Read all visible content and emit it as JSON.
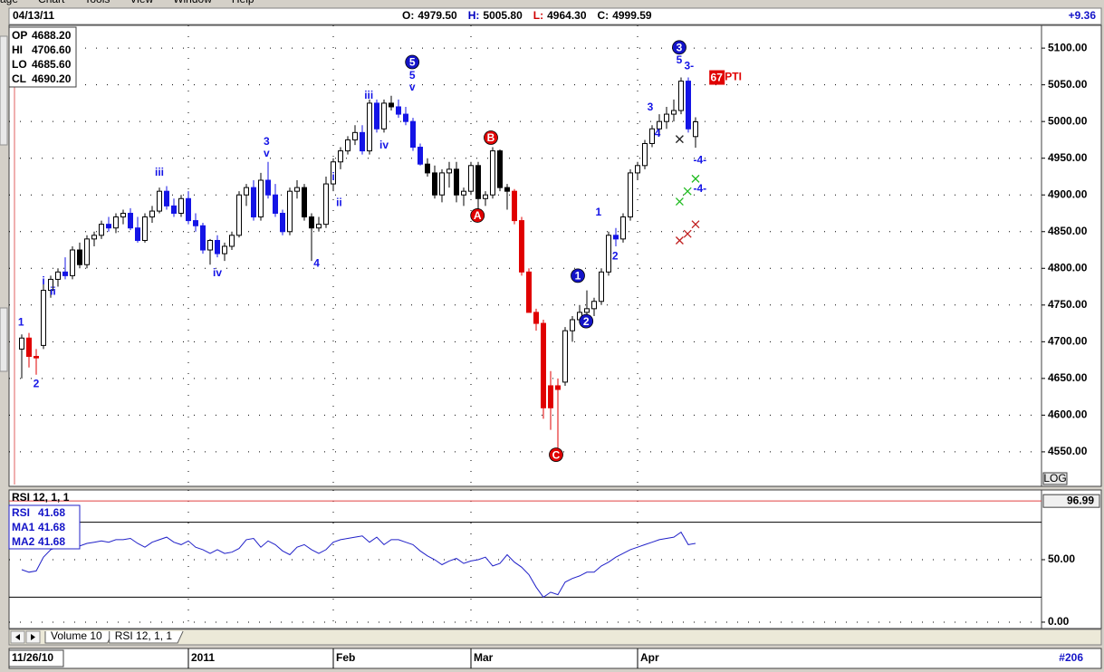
{
  "menu": [
    "age",
    "Chart",
    "Tools",
    "View",
    "Window",
    "Help"
  ],
  "header": {
    "date": "04/13/11",
    "quote": [
      {
        "label": "O:",
        "value": "4979.50",
        "color": "#000000"
      },
      {
        "label": "H:",
        "value": "5005.80",
        "color": "#0000c0"
      },
      {
        "label": "L:",
        "value": "4964.30",
        "color": "#d00000"
      },
      {
        "label": "C:",
        "value": "4999.59",
        "color": "#000000"
      }
    ],
    "change": "+9.36"
  },
  "tabs": [
    "Volume 10",
    "RSI 12, 1, 1"
  ],
  "footer": {
    "start": "11/26/10",
    "count": "#206"
  },
  "chart_data": [
    {
      "type": "candlestick",
      "x": [
        2,
        3,
        4,
        5,
        6,
        7,
        8,
        9,
        10,
        11,
        12,
        13,
        14,
        15,
        16,
        17,
        18,
        19,
        20,
        21,
        22,
        23,
        24,
        25,
        26,
        27,
        28,
        29,
        30,
        31,
        32,
        33,
        34,
        35,
        36,
        37,
        38,
        39,
        40,
        41,
        42,
        43,
        44,
        45,
        46,
        47,
        48,
        49,
        50,
        51,
        52,
        53,
        54,
        55,
        56,
        57,
        58,
        59,
        60,
        61,
        62,
        63,
        64,
        65,
        66,
        67,
        68,
        69,
        70,
        71,
        72,
        73,
        74,
        75,
        76,
        77,
        78,
        79,
        80,
        81,
        82,
        83,
        84,
        85,
        86,
        87,
        88,
        89,
        90,
        91,
        92,
        93,
        94,
        95
      ],
      "open": [
        4690,
        4705,
        4680,
        4695,
        4770,
        4785,
        4795,
        4790,
        4825,
        4805,
        4840,
        4845,
        4860,
        4855,
        4870,
        4875,
        4855,
        4838,
        4870,
        4878,
        4905,
        4885,
        4875,
        4895,
        4865,
        4858,
        4825,
        4838,
        4820,
        4830,
        4845,
        4900,
        4910,
        4870,
        4920,
        4900,
        4875,
        4850,
        4905,
        4910,
        4870,
        4855,
        4860,
        4915,
        4945,
        4960,
        4975,
        4985,
        4960,
        5025,
        4990,
        5025,
        5020,
        5010,
        5000,
        4965,
        4942,
        4930,
        4900,
        4930,
        4935,
        4900,
        4905,
        4940,
        4895,
        4900,
        4960,
        4910,
        4905,
        4865,
        4795,
        4740,
        4725,
        4610,
        4640,
        4645,
        4715,
        4730,
        4740,
        4745,
        4755,
        4795,
        4845,
        4840,
        4870,
        4930,
        4940,
        4970,
        4990,
        5000,
        5010,
        5015,
        5055,
        4979.5
      ],
      "high": [
        4710,
        4712,
        4690,
        4780,
        4790,
        4800,
        4815,
        4830,
        4835,
        4845,
        4850,
        4865,
        4870,
        4875,
        4880,
        4882,
        4870,
        4875,
        4885,
        4910,
        4912,
        4895,
        4900,
        4905,
        4875,
        4862,
        4840,
        4845,
        4835,
        4850,
        4905,
        4915,
        4920,
        4930,
        4945,
        4915,
        4880,
        4910,
        4920,
        4915,
        4875,
        4870,
        4925,
        4950,
        4965,
        4980,
        4995,
        4995,
        5030,
        5030,
        5030,
        5035,
        5030,
        5020,
        5005,
        4970,
        4950,
        4940,
        4935,
        4945,
        4945,
        4910,
        4945,
        4945,
        4905,
        4965,
        4962,
        4915,
        4908,
        4870,
        4800,
        4745,
        4730,
        4660,
        4650,
        4720,
        4735,
        4750,
        4770,
        4760,
        4800,
        4850,
        4855,
        4875,
        4935,
        4945,
        4975,
        4995,
        5010,
        5020,
        5030,
        5060,
        5060,
        5005.8
      ],
      "low": [
        4650,
        4665,
        4655,
        4690,
        4760,
        4775,
        4785,
        4785,
        4800,
        4800,
        4830,
        4840,
        4850,
        4848,
        4860,
        4852,
        4835,
        4835,
        4862,
        4875,
        4880,
        4870,
        4870,
        4860,
        4850,
        4820,
        4805,
        4815,
        4810,
        4825,
        4842,
        4885,
        4865,
        4865,
        4895,
        4870,
        4845,
        4845,
        4895,
        4865,
        4810,
        4850,
        4855,
        4905,
        4935,
        4955,
        4968,
        4955,
        4955,
        4985,
        4985,
        5015,
        5005,
        4995,
        4960,
        4940,
        4925,
        4895,
        4890,
        4910,
        4890,
        4885,
        4900,
        4880,
        4885,
        4895,
        4905,
        4880,
        4860,
        4790,
        4740,
        4715,
        4595,
        4580,
        4550,
        4640,
        4700,
        4725,
        4730,
        4735,
        4750,
        4790,
        4830,
        4835,
        4865,
        4920,
        4935,
        4965,
        4980,
        4990,
        5000,
        5010,
        4985,
        4964.3
      ],
      "close": [
        4705,
        4680,
        4678,
        4770,
        4785,
        4795,
        4790,
        4825,
        4805,
        4840,
        4845,
        4860,
        4855,
        4870,
        4875,
        4855,
        4838,
        4870,
        4878,
        4905,
        4885,
        4875,
        4895,
        4865,
        4858,
        4825,
        4838,
        4820,
        4830,
        4845,
        4900,
        4910,
        4870,
        4920,
        4900,
        4875,
        4850,
        4905,
        4910,
        4870,
        4855,
        4860,
        4915,
        4945,
        4960,
        4975,
        4985,
        4960,
        5025,
        4990,
        5025,
        5020,
        5010,
        5000,
        4965,
        4942,
        4930,
        4900,
        4930,
        4935,
        4900,
        4905,
        4940,
        4895,
        4900,
        4960,
        4910,
        4905,
        4865,
        4795,
        4740,
        4725,
        4610,
        4640,
        4635,
        4715,
        4730,
        4740,
        4745,
        4755,
        4795,
        4845,
        4840,
        4870,
        4930,
        4940,
        4970,
        4990,
        5000,
        5010,
        5015,
        5055,
        4990,
        4999.59
      ],
      "body_colors": [
        "w",
        "r",
        "r",
        "w",
        "w",
        "w",
        "u",
        "w",
        "k",
        "w",
        "w",
        "w",
        "u",
        "w",
        "w",
        "u",
        "u",
        "w",
        "w",
        "w",
        "u",
        "u",
        "w",
        "u",
        "u",
        "u",
        "w",
        "u",
        "w",
        "w",
        "w",
        "w",
        "u",
        "w",
        "u",
        "u",
        "u",
        "w",
        "w",
        "k",
        "k",
        "w",
        "w",
        "w",
        "w",
        "w",
        "w",
        "u",
        "w",
        "u",
        "w",
        "k",
        "u",
        "u",
        "u",
        "u",
        "k",
        "k",
        "w",
        "w",
        "k",
        "w",
        "w",
        "k",
        "w",
        "w",
        "k",
        "k",
        "r",
        "r",
        "r",
        "r",
        "r",
        "r",
        "r",
        "w",
        "w",
        "w",
        "w",
        "w",
        "w",
        "w",
        "u",
        "w",
        "w",
        "w",
        "w",
        "w",
        "w",
        "w",
        "w",
        "w",
        "u",
        "w"
      ],
      "palette": {
        "w": "#ffffff",
        "u": "#1414e6",
        "k": "#000000",
        "r": "#e00000"
      },
      "xlim": [
        0.25,
        142.75
      ],
      "ylim": [
        4503,
        5131
      ],
      "xticks": [
        {
          "value": 25,
          "label": "2011"
        },
        {
          "value": 45,
          "label": "Feb"
        },
        {
          "value": 64,
          "label": "Mar"
        },
        {
          "value": 87,
          "label": "Apr"
        }
      ],
      "yticks": [
        {
          "value": 4550,
          "label": "4550.00"
        },
        {
          "value": 4600,
          "label": "4600.00"
        },
        {
          "value": 4650,
          "label": "4650.00"
        },
        {
          "value": 4700,
          "label": "4700.00"
        },
        {
          "value": 4750,
          "label": "4750.00"
        },
        {
          "value": 4800,
          "label": "4800.00"
        },
        {
          "value": 4850,
          "label": "4850.00"
        },
        {
          "value": 4900,
          "label": "4900.00"
        },
        {
          "value": 4950,
          "label": "4950.00"
        },
        {
          "value": 5000,
          "label": "5000.00"
        },
        {
          "value": 5050,
          "label": "5050.00"
        },
        {
          "value": 5100,
          "label": "5100.00"
        }
      ],
      "grid": true,
      "scale_button": "LOG",
      "data_window": [
        {
          "label": "OP",
          "value": "4688.20"
        },
        {
          "label": "HI",
          "value": "4706.60"
        },
        {
          "label": "LO",
          "value": "4685.60"
        },
        {
          "label": "CL",
          "value": "4690.20"
        }
      ],
      "annotations": [
        {
          "type": "text",
          "text": "1",
          "x": 1.9,
          "y": 4726,
          "color": "#1414e6"
        },
        {
          "type": "text",
          "text": "2",
          "x": 4,
          "y": 4642,
          "color": "#1414e6"
        },
        {
          "type": "text",
          "text": "i",
          "x": 5,
          "y": 4782,
          "color": "#1414e6"
        },
        {
          "type": "text",
          "text": "ii",
          "x": 6.3,
          "y": 4768,
          "color": "#1414e6"
        },
        {
          "type": "text",
          "text": "iii",
          "x": 21,
          "y": 4930,
          "color": "#1414e6"
        },
        {
          "type": "text",
          "text": "iv",
          "x": 29,
          "y": 4793,
          "color": "#1414e6"
        },
        {
          "type": "text",
          "text": "3",
          "x": 35.8,
          "y": 4972,
          "color": "#1414e6"
        },
        {
          "type": "text",
          "text": "v",
          "x": 35.8,
          "y": 4956,
          "color": "#1414e6"
        },
        {
          "type": "text",
          "text": "4",
          "x": 42.7,
          "y": 4806,
          "color": "#1414e6"
        },
        {
          "type": "text",
          "text": "i",
          "x": 45,
          "y": 4924,
          "color": "#1414e6"
        },
        {
          "type": "text",
          "text": "ii",
          "x": 45.8,
          "y": 4889,
          "color": "#1414e6"
        },
        {
          "type": "text",
          "text": "iii",
          "x": 49.9,
          "y": 5035,
          "color": "#1414e6"
        },
        {
          "type": "text",
          "text": "iv",
          "x": 52,
          "y": 4967,
          "color": "#1414e6"
        },
        {
          "type": "circle",
          "text": "5",
          "x": 55.9,
          "y": 5081,
          "color": "#1414c8"
        },
        {
          "type": "text",
          "text": "5",
          "x": 55.9,
          "y": 5062,
          "color": "#1414e6"
        },
        {
          "type": "text",
          "text": "v",
          "x": 55.9,
          "y": 5046,
          "color": "#1414e6"
        },
        {
          "type": "circle",
          "text": "B",
          "x": 66.75,
          "y": 4978,
          "color": "#e00000"
        },
        {
          "type": "circle",
          "text": "A",
          "x": 64.9,
          "y": 4872,
          "color": "#e00000"
        },
        {
          "type": "circle",
          "text": "C",
          "x": 75.75,
          "y": 4546,
          "color": "#e00000"
        },
        {
          "type": "circle",
          "text": "1",
          "x": 78.75,
          "y": 4790,
          "color": "#1414c8"
        },
        {
          "type": "circle",
          "text": "2",
          "x": 79.9,
          "y": 4728,
          "color": "#1414c8"
        },
        {
          "type": "text",
          "text": "1",
          "x": 81.6,
          "y": 4876,
          "color": "#1414e6"
        },
        {
          "type": "text",
          "text": "2",
          "x": 83.9,
          "y": 4816,
          "color": "#1414e6"
        },
        {
          "type": "text",
          "text": "3",
          "x": 88.75,
          "y": 5019,
          "color": "#1414e6"
        },
        {
          "type": "text",
          "text": "4",
          "x": 89.75,
          "y": 4983,
          "color": "#1414e6"
        },
        {
          "type": "circle",
          "text": "3",
          "x": 92.75,
          "y": 5101,
          "color": "#1414c8"
        },
        {
          "type": "text",
          "text": "5",
          "x": 92.75,
          "y": 5083,
          "color": "#1414e6"
        },
        {
          "type": "text",
          "text": "3-",
          "x": 94.1,
          "y": 5075,
          "color": "#1414e6"
        },
        {
          "type": "text",
          "text": "-4-",
          "x": 95.6,
          "y": 4947,
          "color": "#1414e6"
        },
        {
          "type": "text",
          "text": "-4-",
          "x": 95.6,
          "y": 4908,
          "color": "#1414e6"
        },
        {
          "type": "box",
          "text": "67",
          "x": 97.9,
          "y": 5060,
          "color": "#e00000"
        },
        {
          "type": "text",
          "text": "PTI",
          "x": 100.2,
          "y": 5060,
          "color": "#e00000"
        }
      ],
      "crosses": [
        {
          "x": 92.8,
          "y": 4976,
          "color": "#202020"
        },
        {
          "x": 92.8,
          "y": 4891,
          "color": "#22bb22"
        },
        {
          "x": 93.9,
          "y": 4905,
          "color": "#22bb22"
        },
        {
          "x": 95,
          "y": 4922,
          "color": "#22bb22"
        },
        {
          "x": 92.8,
          "y": 4838,
          "color": "#c02020"
        },
        {
          "x": 93.9,
          "y": 4847,
          "color": "#c02020"
        },
        {
          "x": 95,
          "y": 4860,
          "color": "#c02020"
        }
      ]
    },
    {
      "type": "line",
      "title": "RSI 12, 1, 1",
      "x": [
        2,
        3,
        4,
        5,
        6,
        7,
        8,
        9,
        10,
        11,
        12,
        13,
        14,
        15,
        16,
        17,
        18,
        19,
        20,
        21,
        22,
        23,
        24,
        25,
        26,
        27,
        28,
        29,
        30,
        31,
        32,
        33,
        34,
        35,
        36,
        37,
        38,
        39,
        40,
        41,
        42,
        43,
        44,
        45,
        46,
        47,
        48,
        49,
        50,
        51,
        52,
        53,
        54,
        55,
        56,
        57,
        58,
        59,
        60,
        61,
        62,
        63,
        64,
        65,
        66,
        67,
        68,
        69,
        70,
        71,
        72,
        73,
        74,
        75,
        76,
        77,
        78,
        79,
        80,
        81,
        82,
        83,
        84,
        85,
        86,
        87,
        88,
        89,
        90,
        91,
        92,
        93,
        94,
        95
      ],
      "series": [
        {
          "name": "RSI",
          "color": "#2020c8",
          "values": [
            42,
            40,
            41,
            52,
            58,
            60,
            62,
            63,
            61,
            63,
            64,
            65,
            64,
            66,
            66,
            67,
            63,
            60,
            64,
            66,
            68,
            64,
            62,
            65,
            60,
            58,
            55,
            58,
            55,
            56,
            59,
            66,
            67,
            60,
            65,
            62,
            57,
            54,
            60,
            62,
            58,
            55,
            58,
            64,
            66,
            67,
            68,
            69,
            64,
            68,
            62,
            66,
            66,
            64,
            62,
            57,
            53,
            50,
            46,
            49,
            51,
            47,
            49,
            50,
            52,
            45,
            47,
            54,
            48,
            44,
            38,
            28,
            20,
            24,
            22,
            32,
            35,
            37,
            40,
            40,
            45,
            48,
            52,
            55,
            58,
            60,
            62,
            64,
            66,
            67,
            68,
            72,
            62,
            63
          ]
        }
      ],
      "legend": [
        {
          "name": "RSI",
          "value": "41.68"
        },
        {
          "name": "MA1",
          "value": "41.68"
        },
        {
          "name": "MA2",
          "value": "41.68"
        }
      ],
      "levels": [
        80,
        20
      ],
      "marker": {
        "value": 96.99,
        "label": "96.99"
      },
      "xlim": [
        0.25,
        142.75
      ],
      "ylim": [
        -5.1,
        105.8
      ],
      "yticks": [
        {
          "value": 0,
          "label": "0.00"
        },
        {
          "value": 50,
          "label": "50.00"
        }
      ],
      "grid": true
    }
  ]
}
